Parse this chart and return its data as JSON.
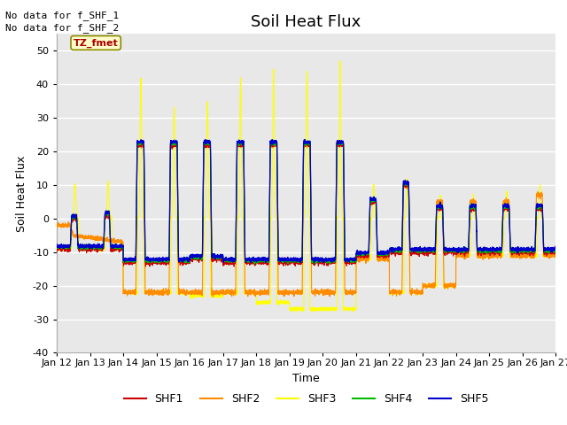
{
  "title": "Soil Heat Flux",
  "xlabel": "Time",
  "ylabel": "Soil Heat Flux",
  "ylim": [
    -40,
    55
  ],
  "yticks": [
    -40,
    -30,
    -20,
    -10,
    0,
    10,
    20,
    30,
    40,
    50
  ],
  "xtick_labels": [
    "Jan 12",
    "Jan 13",
    "Jan 14",
    "Jan 15",
    "Jan 16",
    "Jan 17",
    "Jan 18",
    "Jan 19",
    "Jan 20",
    "Jan 21",
    "Jan 22",
    "Jan 23",
    "Jan 24",
    "Jan 25",
    "Jan 26",
    "Jan 27"
  ],
  "colors": {
    "SHF1": "#cc0000",
    "SHF2": "#ff8c00",
    "SHF3": "#ffff00",
    "SHF4": "#00bb00",
    "SHF5": "#0000cc"
  },
  "no_data_text": [
    "No data for f_SHF_1",
    "No data for f_SHF_2"
  ],
  "tz_label": "TZ_fmet",
  "plot_bg_color": "#e8e8e8",
  "grid_color": "white",
  "title_fontsize": 13,
  "axis_label_fontsize": 9,
  "tick_fontsize": 8
}
